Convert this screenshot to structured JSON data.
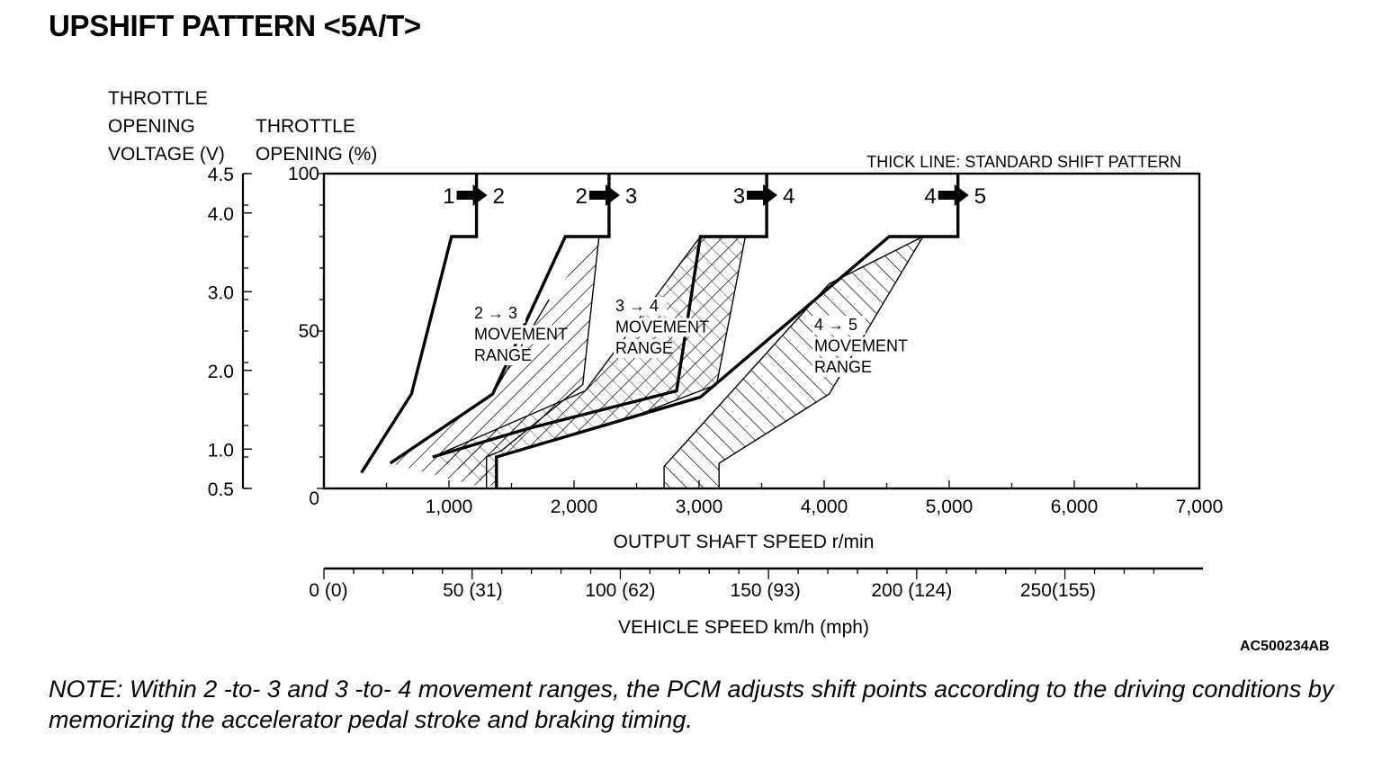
{
  "title": "UPSHIFT PATTERN <5A/T>",
  "figure_code": "AC500234AB",
  "note": "NOTE: Within 2 -to- 3 and 3 -to- 4 movement ranges, the PCM adjusts shift points according to the driving conditions by memorizing the accelerator pedal stroke and braking timing.",
  "colors": {
    "ink": "#000000",
    "background": "#ffffff"
  },
  "chart_data": {
    "type": "line",
    "title": "UPSHIFT PATTERN <5A/T>",
    "annotation": "THICK LINE: STANDARD SHIFT PATTERN",
    "xlabel": "OUTPUT SHAFT SPEED r/min",
    "ylabel": "THROTTLE OPENING (%)",
    "xlim": [
      0,
      7000
    ],
    "ylim": [
      0,
      100
    ],
    "x_ticks": [
      0,
      1000,
      2000,
      3000,
      4000,
      5000,
      6000,
      7000
    ],
    "x_tick_labels": [
      "",
      "1,000",
      "2,000",
      "3,000",
      "4,000",
      "5,000",
      "6,000",
      "7,000"
    ],
    "y_ticks": [
      0,
      50,
      100
    ],
    "y_tick_labels": [
      "0",
      "50",
      "100"
    ],
    "voltage_axis": {
      "label_lines": [
        "THROTTLE",
        "OPENING",
        "VOLTAGE (V)"
      ],
      "ticks": [
        {
          "v": 0.5,
          "label": "0.5",
          "pct": 0
        },
        {
          "v": 1.0,
          "label": "1.0",
          "pct": 12.5
        },
        {
          "v": 2.0,
          "label": "2.0",
          "pct": 37.5
        },
        {
          "v": 3.0,
          "label": "3.0",
          "pct": 62.5
        },
        {
          "v": 4.0,
          "label": "4.0",
          "pct": 87.5
        },
        {
          "v": 4.5,
          "label": "4.5",
          "pct": 100
        }
      ]
    },
    "throttle_axis_label_lines": [
      "THROTTLE",
      "OPENING (%)"
    ],
    "vehicle_speed_axis": {
      "label": "VEHICLE SPEED km/h (mph)",
      "ticks": [
        {
          "rpm": 0,
          "label": "0 (0)"
        },
        {
          "rpm": 1190,
          "label": "50 (31)"
        },
        {
          "rpm": 2370,
          "label": "100 (62)"
        },
        {
          "rpm": 3530,
          "label": "150 (93)"
        },
        {
          "rpm": 4700,
          "label": "200 (124)"
        },
        {
          "rpm": 5870,
          "label": "250(155)"
        }
      ]
    },
    "series": [
      {
        "name": "1 → 2",
        "from": "1",
        "to": "2",
        "standard": [
          [
            300,
            5
          ],
          [
            700,
            30
          ],
          [
            1020,
            80
          ],
          [
            1220,
            80
          ],
          [
            1220,
            100
          ]
        ]
      },
      {
        "name": "2 → 3",
        "from": "2",
        "to": "3",
        "standard": [
          [
            530,
            8
          ],
          [
            1350,
            30
          ],
          [
            1930,
            80
          ],
          [
            2280,
            80
          ],
          [
            2280,
            100
          ]
        ],
        "range_left": [
          [
            530,
            8
          ],
          [
            1350,
            30
          ],
          [
            1800,
            60
          ]
        ],
        "range_right": [
          [
            1300,
            0
          ],
          [
            1300,
            10
          ],
          [
            1420,
            12
          ],
          [
            2070,
            33
          ],
          [
            2200,
            80
          ]
        ],
        "range_label": [
          "2 → 3",
          "MOVEMENT",
          "RANGE"
        ]
      },
      {
        "name": "3 → 4",
        "from": "3",
        "to": "4",
        "standard": [
          [
            870,
            10
          ],
          [
            1630,
            19
          ],
          [
            2820,
            31
          ],
          [
            3010,
            80
          ],
          [
            3540,
            80
          ],
          [
            3540,
            100
          ]
        ],
        "range_left": [
          [
            870,
            10
          ],
          [
            2090,
            31
          ],
          [
            3010,
            80
          ]
        ],
        "range_right": [
          [
            1380,
            0
          ],
          [
            1380,
            10
          ],
          [
            2550,
            24
          ],
          [
            3140,
            33
          ],
          [
            3370,
            80
          ]
        ],
        "range_label": [
          "3 → 4",
          "MOVEMENT",
          "RANGE"
        ]
      },
      {
        "name": "4 → 5",
        "from": "4",
        "to": "5",
        "standard": [
          [
            1380,
            0
          ],
          [
            1380,
            10
          ],
          [
            3010,
            29
          ],
          [
            4520,
            80
          ],
          [
            5070,
            80
          ],
          [
            5070,
            100
          ]
        ],
        "range_left": [
          [
            2720,
            0
          ],
          [
            2720,
            7
          ],
          [
            4040,
            65
          ],
          [
            4790,
            80
          ]
        ],
        "range_right": [
          [
            3160,
            0
          ],
          [
            3160,
            8
          ],
          [
            4040,
            30
          ],
          [
            4790,
            80
          ]
        ],
        "range_label": [
          "4 → 5",
          "MOVEMENT",
          "RANGE"
        ]
      }
    ],
    "grid": false,
    "legend": "none"
  }
}
